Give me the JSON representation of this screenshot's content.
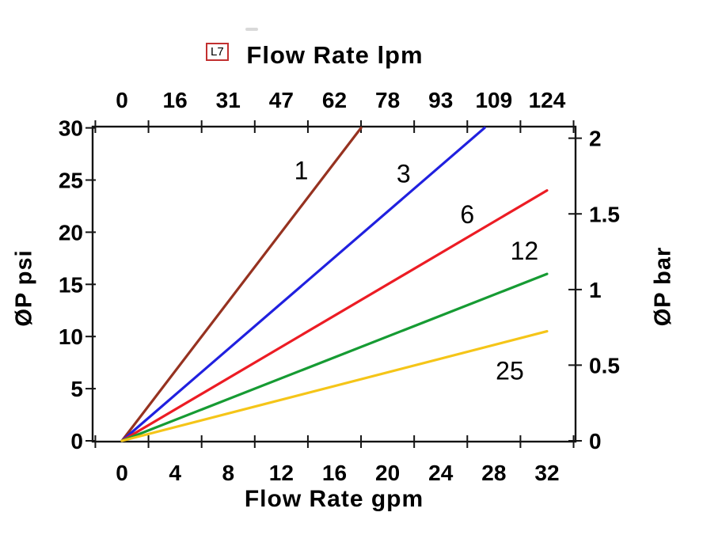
{
  "page": {
    "background": "#ffffff"
  },
  "header": {
    "badge_label": "L7",
    "badge_border_color": "#c23030"
  },
  "chart_data": {
    "type": "line",
    "title_top_axis": "Flow Rate lpm",
    "xlabel_bottom": "Flow Rate gpm",
    "ylabel_left": "ØP psi",
    "ylabel_right": "ØP bar",
    "x_axis_bottom": {
      "unit": "gpm",
      "labels": [
        0,
        4,
        8,
        12,
        16,
        20,
        24,
        28,
        32
      ],
      "tick_marks_gpm": [
        -2,
        2,
        6,
        10,
        14,
        18,
        22,
        26,
        30,
        34
      ],
      "range_gpm": [
        -2.3,
        34.2
      ]
    },
    "x_axis_top": {
      "unit": "lpm",
      "labels": [
        "0",
        "16",
        "31",
        "47",
        "62",
        "78",
        "93",
        "109",
        "124"
      ]
    },
    "y_axis_left": {
      "unit": "psi",
      "labels": [
        0,
        5,
        10,
        15,
        20,
        25,
        30
      ],
      "range_psi": [
        0,
        30
      ]
    },
    "y_axis_right": {
      "unit": "bar",
      "labels": [
        "0",
        "0.5",
        "1",
        "1.5",
        "2"
      ],
      "values": [
        0,
        0.5,
        1,
        1.5,
        2
      ],
      "psi_per_bar": 14.504
    },
    "grid": false,
    "series": [
      {
        "label": "1",
        "color": "#963220",
        "points_gpm_psi": [
          [
            0,
            0
          ],
          [
            18.0,
            30
          ]
        ],
        "label_pos_gpm_psi": [
          13.5,
          25.9
        ]
      },
      {
        "label": "3",
        "color": "#2020df",
        "points_gpm_psi": [
          [
            0,
            0
          ],
          [
            27.3,
            30
          ]
        ],
        "label_pos_gpm_psi": [
          21.2,
          25.6
        ]
      },
      {
        "label": "6",
        "color": "#ec1c24",
        "points_gpm_psi": [
          [
            0,
            0
          ],
          [
            32,
            24
          ]
        ],
        "label_pos_gpm_psi": [
          26.0,
          21.7
        ]
      },
      {
        "label": "12",
        "color": "#169b33",
        "points_gpm_psi": [
          [
            0,
            0
          ],
          [
            32,
            16
          ]
        ],
        "label_pos_gpm_psi": [
          30.3,
          18.2
        ]
      },
      {
        "label": "25",
        "color": "#f5c518",
        "points_gpm_psi": [
          [
            0,
            0
          ],
          [
            32,
            10.5
          ]
        ],
        "label_pos_gpm_psi": [
          29.2,
          6.7
        ]
      }
    ]
  }
}
